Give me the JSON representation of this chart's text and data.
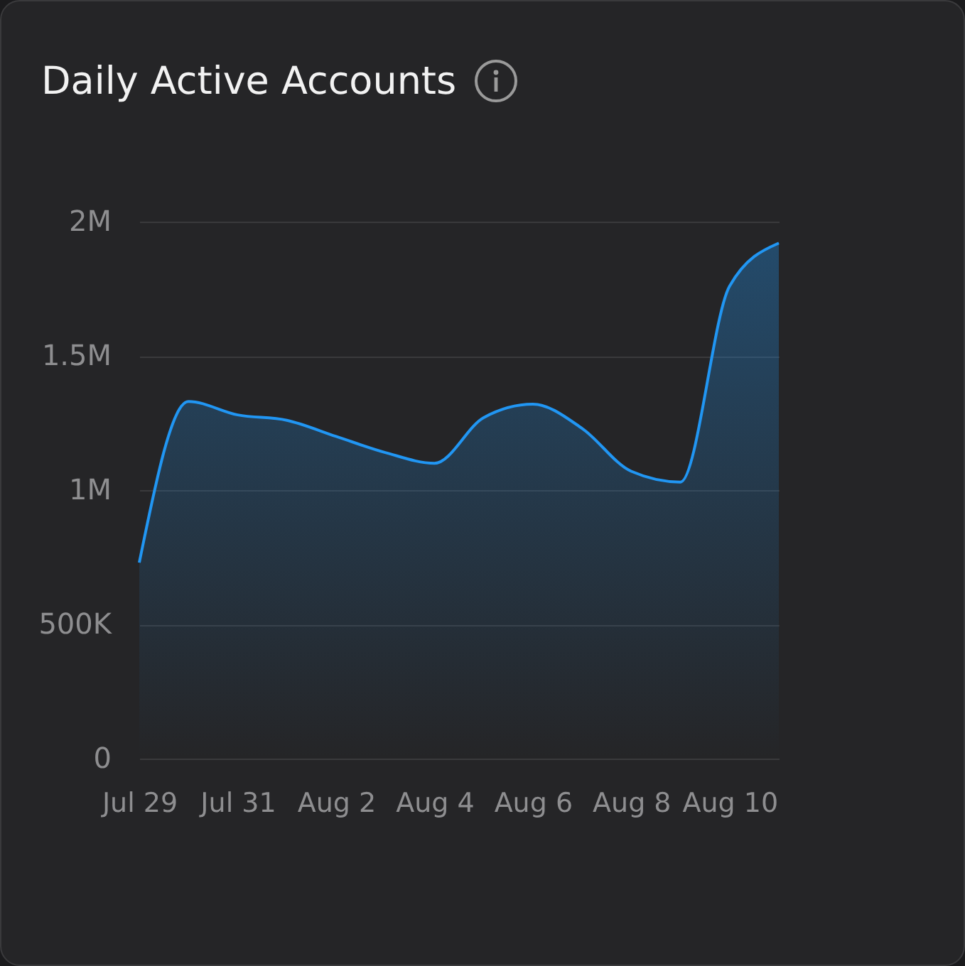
{
  "chart_data": {
    "type": "area",
    "title": "Daily Active Accounts",
    "x": [
      "--07-29",
      "--07-30",
      "--07-31",
      "--08-01",
      "--08-02",
      "--08-03",
      "--08-04",
      "--08-05",
      "--08-06",
      "--08-07",
      "--08-08",
      "--08-09",
      "--08-10",
      "--08-11"
    ],
    "series": [
      {
        "color": "#2196f3",
        "values": [
          730000,
          1330000,
          1280000,
          1260000,
          1200000,
          1140000,
          1100000,
          1270000,
          1320000,
          1230000,
          1070000,
          1030000,
          1760000,
          1920000
        ]
      }
    ],
    "xlim": [
      "--07-29",
      "--08-11"
    ],
    "xticks": [
      {
        "value": "--07-29",
        "label": "Jul 29"
      },
      {
        "value": "--07-31",
        "label": "Jul 31"
      },
      {
        "value": "--08-02",
        "label": "Aug 2"
      },
      {
        "value": "--08-04",
        "label": "Aug 4"
      },
      {
        "value": "--08-06",
        "label": "Aug 6"
      },
      {
        "value": "--08-08",
        "label": "Aug 8"
      },
      {
        "value": "--08-10",
        "label": "Aug 10"
      }
    ],
    "ylim": [
      0,
      2000000
    ],
    "yticks": [
      {
        "value": 0,
        "label": "0"
      },
      {
        "value": 500000,
        "label": "500K"
      },
      {
        "value": 1000000,
        "label": "1M"
      },
      {
        "value": 1500000,
        "label": "1.5M"
      },
      {
        "value": 2000000,
        "label": "2M"
      }
    ],
    "grid": "y",
    "marker": "none",
    "line_style": "solid"
  }
}
